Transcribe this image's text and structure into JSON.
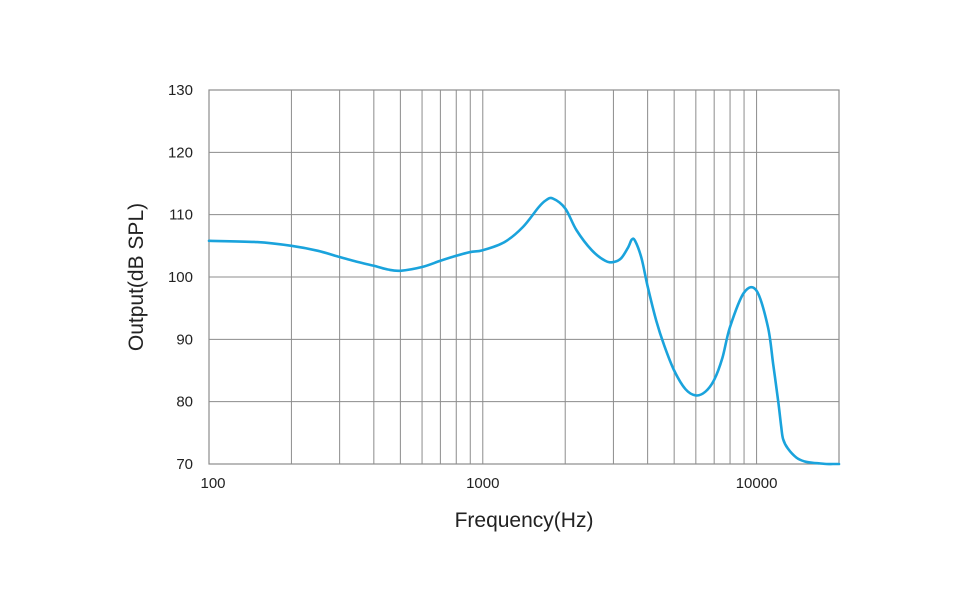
{
  "chart_data": {
    "type": "line",
    "title": "",
    "xlabel": "Frequency(Hz)",
    "ylabel": "Output(dB SPL)",
    "x_scale": "log",
    "xlim": [
      100,
      20000
    ],
    "ylim": [
      70,
      130
    ],
    "x_tick_labels": [
      "100",
      "1000",
      "10000"
    ],
    "x_tick_values": [
      100,
      1000,
      10000
    ],
    "y_ticks": [
      70,
      80,
      90,
      100,
      110,
      120,
      130
    ],
    "grid": true,
    "legend": "none",
    "colors": {
      "line": "#1aa3dc",
      "grid": "#8c8c8c",
      "text": "#222222"
    },
    "series": [
      {
        "x": [
          100,
          150,
          200,
          250,
          300,
          350,
          400,
          450,
          500,
          600,
          700,
          800,
          900,
          1000,
          1200,
          1400,
          1600,
          1700,
          1800,
          2000,
          2200,
          2500,
          2800,
          3000,
          3200,
          3400,
          3500,
          3600,
          3800,
          4000,
          4300,
          4600,
          5000,
          5500,
          6000,
          6500,
          7000,
          7500,
          8000,
          9000,
          10000,
          11000,
          11500,
          12000,
          12300,
          12500,
          13000,
          14000,
          15000,
          16000,
          17000,
          18000,
          19000,
          20000
        ],
        "y": [
          105.8,
          105.6,
          105.0,
          104.2,
          103.2,
          102.4,
          101.8,
          101.2,
          101.0,
          101.6,
          102.6,
          103.4,
          104.0,
          104.3,
          105.6,
          108.0,
          111.2,
          112.3,
          112.6,
          111.0,
          107.5,
          104.3,
          102.6,
          102.4,
          103.0,
          104.8,
          106.0,
          105.8,
          103.0,
          98.5,
          93.0,
          89.0,
          85.0,
          82.0,
          81.0,
          81.6,
          83.5,
          87.0,
          92.0,
          97.5,
          97.8,
          92.0,
          86.0,
          80.0,
          76.0,
          74.0,
          72.5,
          71.0,
          70.4,
          70.2,
          70.1,
          70.0,
          70.0,
          70.0
        ]
      }
    ]
  }
}
